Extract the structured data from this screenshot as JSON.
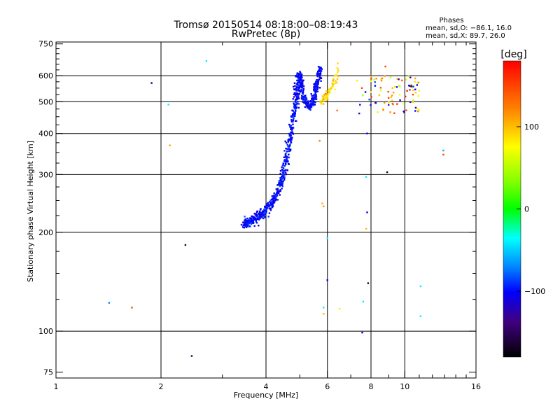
{
  "chart_data": {
    "type": "scatter",
    "title": "Tromsø 20150514 08:18:00–08:19:43",
    "subtitle": "RwPretec (8p)",
    "xlabel": "Frequency [MHz]",
    "ylabel": "Stationary phase Virtual Height [km]",
    "xscale": "log2",
    "yscale": "log",
    "xlim": [
      1,
      16
    ],
    "ylim": [
      72,
      760
    ],
    "x_ticks": [
      1,
      2,
      4,
      6,
      8,
      10,
      16
    ],
    "x_tick_labels": [
      "1",
      "2",
      "4",
      "6",
      "8",
      "10",
      "16"
    ],
    "x_minor_ticks": [
      3,
      5,
      7,
      9,
      11,
      12,
      13,
      14,
      15
    ],
    "x_grid": [
      2,
      4,
      6,
      8,
      10
    ],
    "y_ticks": [
      75,
      100,
      200,
      300,
      400,
      500,
      600,
      750
    ],
    "y_tick_labels": [
      "75",
      "100",
      "200",
      "300",
      "400",
      "500",
      "600",
      "750"
    ],
    "y_grid": [
      100,
      200,
      300,
      400,
      500,
      600
    ],
    "y_minor_ticks": [
      125,
      150,
      175,
      225,
      250,
      275,
      325,
      350,
      375,
      425,
      450,
      475,
      525,
      550,
      575,
      625,
      650,
      675,
      700,
      725
    ],
    "grid": true,
    "legend": {
      "title": "Phases",
      "lines": [
        "mean, sd,O: −86.1, 16.0",
        "mean, sd,X: 89.7, 26.0"
      ]
    },
    "colorbar": {
      "label": "[deg]",
      "range": [
        -180,
        180
      ],
      "ticks": [
        100,
        0,
        -100
      ],
      "tick_labels": [
        "100",
        "0",
        "−100"
      ],
      "placement": "right"
    },
    "trace_O": [
      {
        "f": 3.45,
        "h": 212
      },
      {
        "f": 3.55,
        "h": 215
      },
      {
        "f": 3.7,
        "h": 220
      },
      {
        "f": 3.85,
        "h": 225
      },
      {
        "f": 4.0,
        "h": 232
      },
      {
        "f": 4.15,
        "h": 245
      },
      {
        "f": 4.3,
        "h": 262
      },
      {
        "f": 4.45,
        "h": 290
      },
      {
        "f": 4.55,
        "h": 325
      },
      {
        "f": 4.65,
        "h": 370
      },
      {
        "f": 4.75,
        "h": 420
      },
      {
        "f": 4.85,
        "h": 480
      },
      {
        "f": 4.9,
        "h": 530
      },
      {
        "f": 4.95,
        "h": 585
      },
      {
        "f": 5.0,
        "h": 600
      },
      {
        "f": 5.05,
        "h": 560
      },
      {
        "f": 5.15,
        "h": 510
      },
      {
        "f": 5.3,
        "h": 480
      },
      {
        "f": 5.45,
        "h": 500
      },
      {
        "f": 5.55,
        "h": 540
      },
      {
        "f": 5.65,
        "h": 590
      },
      {
        "f": 5.75,
        "h": 630
      }
    ],
    "trace_X": [
      {
        "f": 5.75,
        "h": 495
      },
      {
        "f": 5.85,
        "h": 510
      },
      {
        "f": 6.0,
        "h": 525
      },
      {
        "f": 6.15,
        "h": 545
      },
      {
        "f": 6.3,
        "h": 580
      },
      {
        "f": 6.4,
        "h": 630
      }
    ],
    "scattered": [
      {
        "f": 1.88,
        "h": 570,
        "p": -150
      },
      {
        "f": 2.1,
        "h": 490,
        "p": -40
      },
      {
        "f": 2.12,
        "h": 368,
        "p": 110
      },
      {
        "f": 2.7,
        "h": 665,
        "p": -40
      },
      {
        "f": 1.42,
        "h": 122,
        "p": -70
      },
      {
        "f": 1.65,
        "h": 118,
        "p": 150
      },
      {
        "f": 2.35,
        "h": 183,
        "p": -160
      },
      {
        "f": 2.45,
        "h": 84,
        "p": -150
      },
      {
        "f": 6.0,
        "h": 192,
        "p": -40
      },
      {
        "f": 6.0,
        "h": 143,
        "p": -100
      },
      {
        "f": 5.85,
        "h": 118,
        "p": -40
      },
      {
        "f": 5.85,
        "h": 113,
        "p": 100
      },
      {
        "f": 6.5,
        "h": 117,
        "p": 60
      },
      {
        "f": 7.6,
        "h": 123,
        "p": -40
      },
      {
        "f": 7.55,
        "h": 99,
        "p": -100
      },
      {
        "f": 7.85,
        "h": 140,
        "p": -160
      },
      {
        "f": 7.8,
        "h": 230,
        "p": -100
      },
      {
        "f": 7.75,
        "h": 205,
        "p": 100
      },
      {
        "f": 7.75,
        "h": 295,
        "p": -40
      },
      {
        "f": 7.8,
        "h": 400,
        "p": -100
      },
      {
        "f": 8.9,
        "h": 305,
        "p": -170
      },
      {
        "f": 12.9,
        "h": 355,
        "p": -60
      },
      {
        "f": 12.9,
        "h": 345,
        "p": 150
      },
      {
        "f": 11.1,
        "h": 137,
        "p": -40
      },
      {
        "f": 11.1,
        "h": 111,
        "p": -40
      },
      {
        "f": 5.8,
        "h": 245,
        "p": 100
      },
      {
        "f": 5.85,
        "h": 240,
        "p": 110
      },
      {
        "f": 6.4,
        "h": 470,
        "p": 130
      },
      {
        "f": 5.7,
        "h": 380,
        "p": 120
      },
      {
        "f": 8.8,
        "h": 640,
        "p": 150
      }
    ],
    "cluster": {
      "f_range": [
        7.2,
        11.0
      ],
      "h_range": [
        460,
        600
      ],
      "phase_range": [
        40,
        170
      ]
    }
  }
}
